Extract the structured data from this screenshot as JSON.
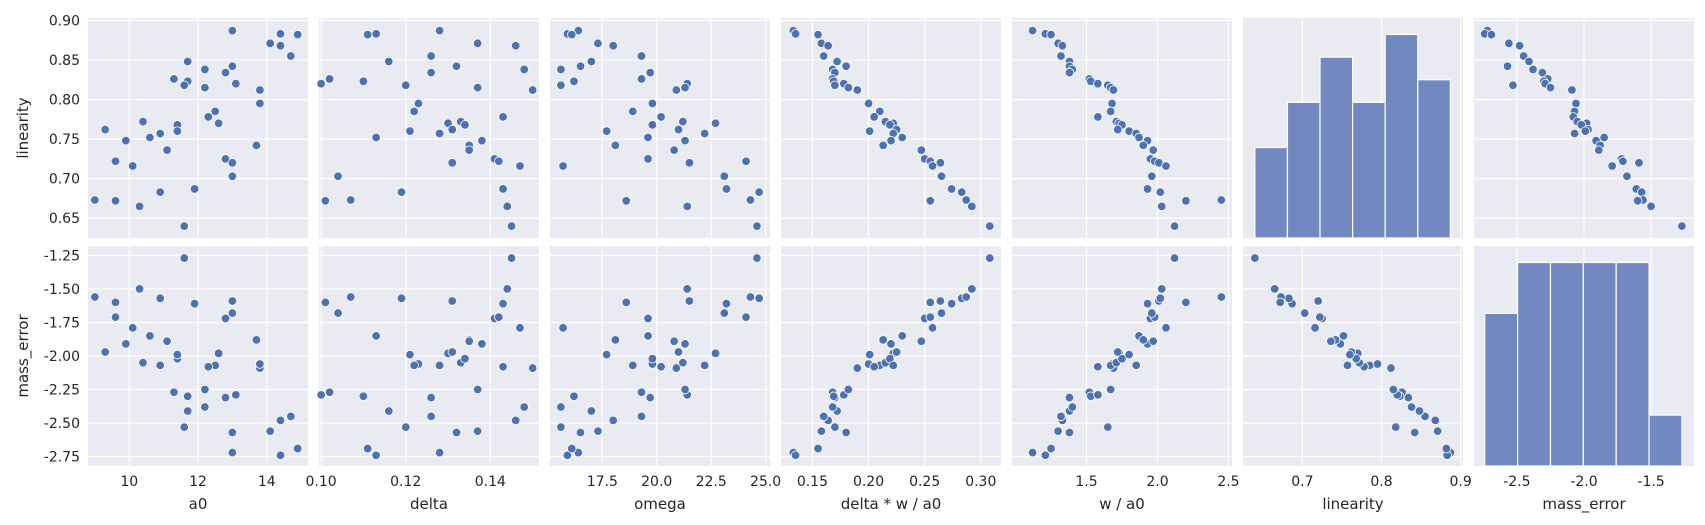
{
  "chart_data": {
    "type": "scatter",
    "style": {
      "panel_background": "#EAEAF2",
      "grid_color": "#FFFFFF",
      "marker_color": "#4C72B0",
      "bar_color": "#7189C0",
      "grid": true
    },
    "x_variables": [
      "a0",
      "delta",
      "omega",
      "delta * w / a0",
      "w / a0",
      "linearity",
      "mass_error"
    ],
    "y_variables": [
      "linearity",
      "mass_error"
    ],
    "axes": {
      "a0": {
        "lim": [
          8.8,
          15.2
        ],
        "ticks": [
          10,
          12,
          14
        ],
        "tick_labels": [
          "10",
          "12",
          "14"
        ]
      },
      "delta": {
        "lim": [
          0.0995,
          0.1515
        ],
        "ticks": [
          0.1,
          0.12,
          0.14
        ],
        "tick_labels": [
          "0.10",
          "0.12",
          "0.14"
        ]
      },
      "omega": {
        "lim": [
          15.1,
          25.2
        ],
        "ticks": [
          17.5,
          20,
          22.5,
          25
        ],
        "tick_labels": [
          "17.5",
          "20.0",
          "22.5",
          "25.0"
        ]
      },
      "delta * w / a0": {
        "lim": [
          0.122,
          0.318
        ],
        "ticks": [
          0.15,
          0.2,
          0.25,
          0.3
        ],
        "tick_labels": [
          "0.15",
          "0.20",
          "0.25",
          "0.30"
        ]
      },
      "w / a0": {
        "lim": [
          0.975,
          2.525
        ],
        "ticks": [
          1.5,
          2,
          2.5
        ],
        "tick_labels": [
          "1.5",
          "2.0",
          "2.5"
        ]
      },
      "linearity": {
        "lim": [
          0.625,
          0.903
        ],
        "ticks": [
          0.65,
          0.7,
          0.75,
          0.8,
          0.85,
          0.9
        ],
        "tick_labels": [
          "0.65",
          "0.70",
          "0.75",
          "0.80",
          "0.85",
          "0.90"
        ],
        "x_ticks": [
          0.7,
          0.8,
          0.9
        ],
        "x_tick_labels": [
          "0.7",
          "0.8",
          "0.9"
        ]
      },
      "mass_error": {
        "lim": [
          -2.82,
          -1.18
        ],
        "ticks": [
          -2.75,
          -2.5,
          -2.25,
          -2,
          -1.75,
          -1.5,
          -1.25
        ],
        "tick_labels": [
          "-2.75",
          "-2.50",
          "-2.25",
          "-2.00",
          "-1.75",
          "-1.50",
          "-1.25"
        ],
        "x_ticks": [
          -2.5,
          -2,
          -1.5
        ],
        "x_tick_labels": [
          "-2.5",
          "-2.0",
          "-1.5"
        ]
      }
    },
    "points": {
      "linearity": [
        0.887,
        0.883,
        0.882,
        0.871,
        0.868,
        0.855,
        0.848,
        0.842,
        0.838,
        0.834,
        0.826,
        0.823,
        0.82,
        0.818,
        0.815,
        0.812,
        0.795,
        0.785,
        0.778,
        0.772,
        0.77,
        0.768,
        0.762,
        0.76,
        0.757,
        0.752,
        0.748,
        0.742,
        0.736,
        0.725,
        0.722,
        0.72,
        0.716,
        0.703,
        0.687,
        0.683,
        0.673,
        0.672,
        0.665,
        0.64
      ],
      "mass_error": [
        -2.72,
        -2.74,
        -2.69,
        -2.56,
        -2.48,
        -2.45,
        -2.41,
        -2.57,
        -2.38,
        -2.31,
        -2.27,
        -2.3,
        -2.29,
        -2.53,
        -2.25,
        -2.09,
        -2.06,
        -2.07,
        -2.08,
        -2.05,
        -1.98,
        -2.02,
        -1.97,
        -1.99,
        -2.07,
        -1.85,
        -1.91,
        -1.88,
        -1.89,
        -1.72,
        -1.71,
        -1.59,
        -1.79,
        -1.68,
        -1.61,
        -1.57,
        -1.56,
        -1.6,
        -1.5,
        -1.27
      ],
      "delta * w / a0": [
        0.133,
        0.135,
        0.155,
        0.158,
        0.164,
        0.16,
        0.172,
        0.18,
        0.168,
        0.17,
        0.168,
        0.169,
        0.178,
        0.17,
        0.182,
        0.19,
        0.2,
        0.21,
        0.205,
        0.215,
        0.222,
        0.219,
        0.225,
        0.201,
        0.222,
        0.23,
        0.22,
        0.213,
        0.247,
        0.25,
        0.255,
        0.264,
        0.257,
        0.265,
        0.274,
        0.283,
        0.287,
        0.255,
        0.292,
        0.308
      ],
      "w / a0": [
        1.12,
        1.21,
        1.25,
        1.3,
        1.33,
        1.32,
        1.38,
        1.38,
        1.4,
        1.38,
        1.52,
        1.53,
        1.58,
        1.65,
        1.67,
        1.69,
        1.68,
        1.67,
        1.58,
        1.71,
        1.73,
        1.75,
        1.72,
        1.8,
        1.85,
        1.87,
        1.93,
        1.9,
        1.97,
        1.95,
        1.98,
        2.01,
        2.06,
        1.96,
        1.93,
        2.02,
        2.45,
        2.2,
        2.03,
        2.12
      ],
      "a0": [
        13.0,
        14.4,
        14.9,
        14.1,
        14.4,
        14.7,
        11.7,
        13.0,
        12.2,
        12.8,
        11.3,
        11.7,
        13.1,
        11.6,
        12.2,
        13.8,
        13.8,
        12.5,
        12.3,
        10.4,
        12.6,
        11.4,
        9.3,
        11.4,
        10.9,
        10.6,
        9.9,
        13.7,
        11.1,
        12.8,
        9.6,
        13.0,
        10.1,
        13.0,
        11.9,
        10.9,
        9.0,
        9.6,
        10.3,
        11.6
      ],
      "delta": [
        0.128,
        0.113,
        0.111,
        0.137,
        0.146,
        0.126,
        0.116,
        0.132,
        0.148,
        0.126,
        0.102,
        0.11,
        0.1,
        0.12,
        0.137,
        0.15,
        0.123,
        0.122,
        0.143,
        0.133,
        0.13,
        0.134,
        0.131,
        0.121,
        0.128,
        0.113,
        0.138,
        0.135,
        0.135,
        0.141,
        0.142,
        0.131,
        0.147,
        0.104,
        0.143,
        0.119,
        0.107,
        0.101,
        0.144,
        0.145
      ],
      "omega": [
        16.4,
        15.9,
        16.1,
        17.3,
        18.0,
        19.3,
        17.0,
        16.5,
        15.6,
        19.7,
        19.3,
        16.2,
        21.4,
        15.6,
        21.3,
        20.9,
        19.8,
        18.9,
        20.2,
        21.2,
        22.7,
        19.8,
        21.0,
        17.7,
        22.2,
        19.6,
        21.3,
        18.1,
        20.8,
        19.6,
        24.1,
        21.5,
        15.7,
        23.1,
        23.2,
        24.7,
        24.3,
        18.6,
        21.4,
        24.6
      ]
    }
  }
}
